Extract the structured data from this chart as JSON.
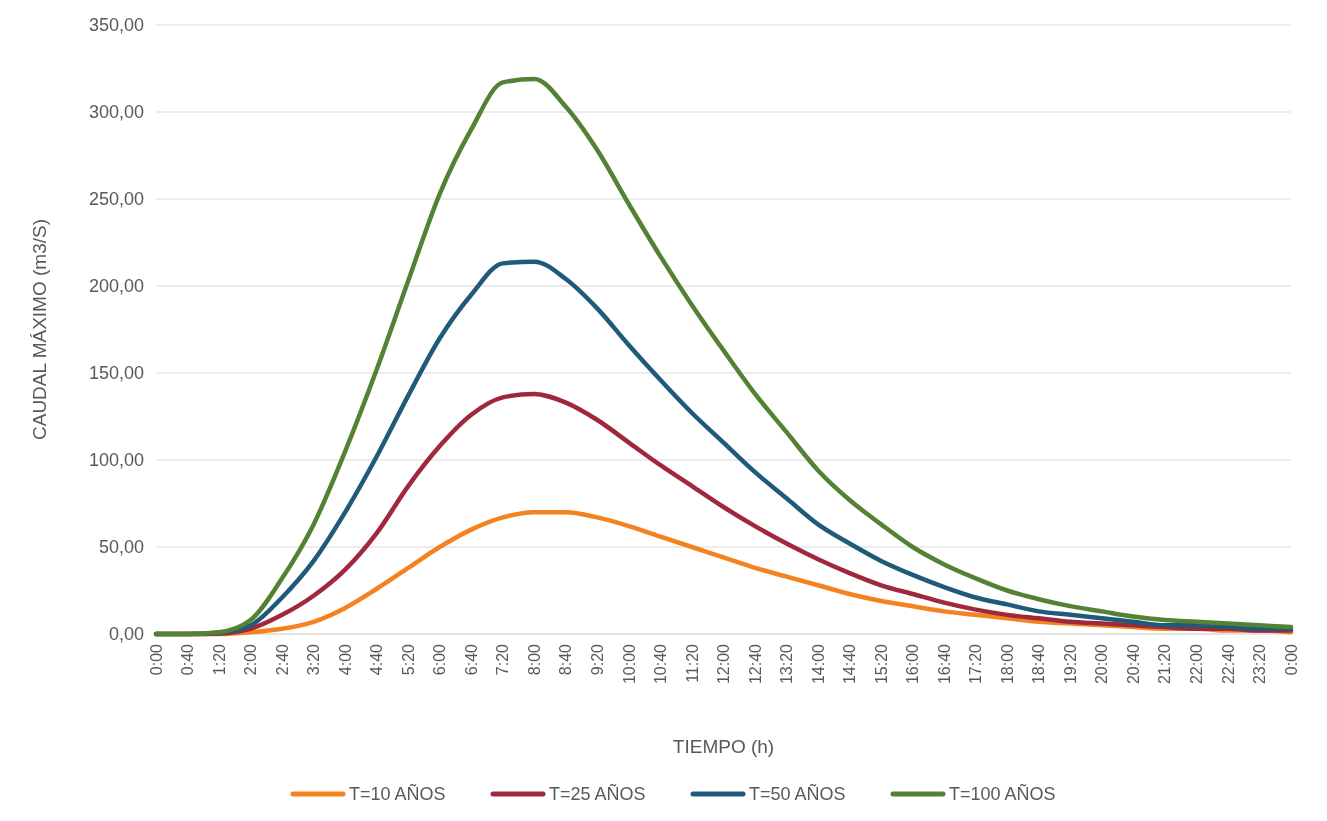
{
  "chart_data": {
    "type": "line",
    "xlabel": "TIEMPO (h)",
    "ylabel": "CAUDAL MÁXIMO (m3/S)",
    "categories": [
      "0:00",
      "0:40",
      "1:20",
      "2:00",
      "2:40",
      "3:20",
      "4:00",
      "4:40",
      "5:20",
      "6:00",
      "6:40",
      "7:20",
      "8:00",
      "8:40",
      "9:20",
      "10:00",
      "10:40",
      "11:20",
      "12:00",
      "12:40",
      "13:20",
      "14:00",
      "14:40",
      "15:20",
      "16:00",
      "16:40",
      "17:20",
      "18:00",
      "18:40",
      "19:20",
      "20:00",
      "20:40",
      "21:20",
      "22:00",
      "22:40",
      "23:20",
      "0:00"
    ],
    "series": [
      {
        "name": "T=10 AÑOS",
        "color": "#f4831f",
        "values": [
          0,
          0,
          0,
          1,
          3,
          7,
          15,
          26,
          38,
          50,
          60,
          67,
          70,
          70,
          67,
          62,
          56,
          50,
          44,
          38,
          33,
          28,
          23,
          19,
          16,
          13,
          11,
          9,
          7,
          6,
          5,
          4,
          3,
          3,
          2,
          2,
          1
        ]
      },
      {
        "name": "T=25 AÑOS",
        "color": "#a0283c",
        "values": [
          0,
          0,
          0.3,
          3,
          11,
          22,
          37,
          58,
          85,
          108,
          126,
          136,
          138,
          133,
          123,
          110,
          97,
          85,
          73,
          62,
          52,
          43,
          35,
          28,
          23,
          18,
          14,
          11,
          9,
          7,
          6,
          5,
          4,
          3,
          3,
          2,
          2
        ]
      },
      {
        "name": "T=50 AÑOS",
        "color": "#1f5a7a",
        "values": [
          0,
          0,
          0.7,
          5,
          21,
          42,
          70,
          102,
          137,
          170,
          195,
          213,
          214,
          204,
          187,
          166,
          146,
          127,
          110,
          93,
          78,
          63,
          52,
          42,
          34,
          27,
          21,
          17,
          13,
          11,
          9,
          7,
          5,
          5,
          4,
          3,
          3
        ]
      },
      {
        "name": "T=100 AÑOS",
        "color": "#548235",
        "values": [
          0,
          0,
          1,
          8,
          32,
          63,
          105,
          152,
          203,
          253,
          290,
          317,
          319,
          303,
          278,
          247,
          217,
          189,
          163,
          138,
          116,
          94,
          77,
          63,
          50,
          40,
          32,
          25,
          20,
          16,
          13,
          10,
          8,
          7,
          6,
          5,
          4
        ]
      }
    ],
    "ylim": [
      0,
      350
    ],
    "yticks": [
      {
        "value": 0,
        "label": "0,00"
      },
      {
        "value": 50,
        "label": "50,00"
      },
      {
        "value": 100,
        "label": "100,00"
      },
      {
        "value": 150,
        "label": "150,00"
      },
      {
        "value": 200,
        "label": "200,00"
      },
      {
        "value": 250,
        "label": "250,00"
      },
      {
        "value": 300,
        "label": "300,00"
      },
      {
        "value": 350,
        "label": "350,00"
      }
    ],
    "grid": "y",
    "legend": "bottom",
    "marker": "none",
    "line_style": "solid"
  }
}
